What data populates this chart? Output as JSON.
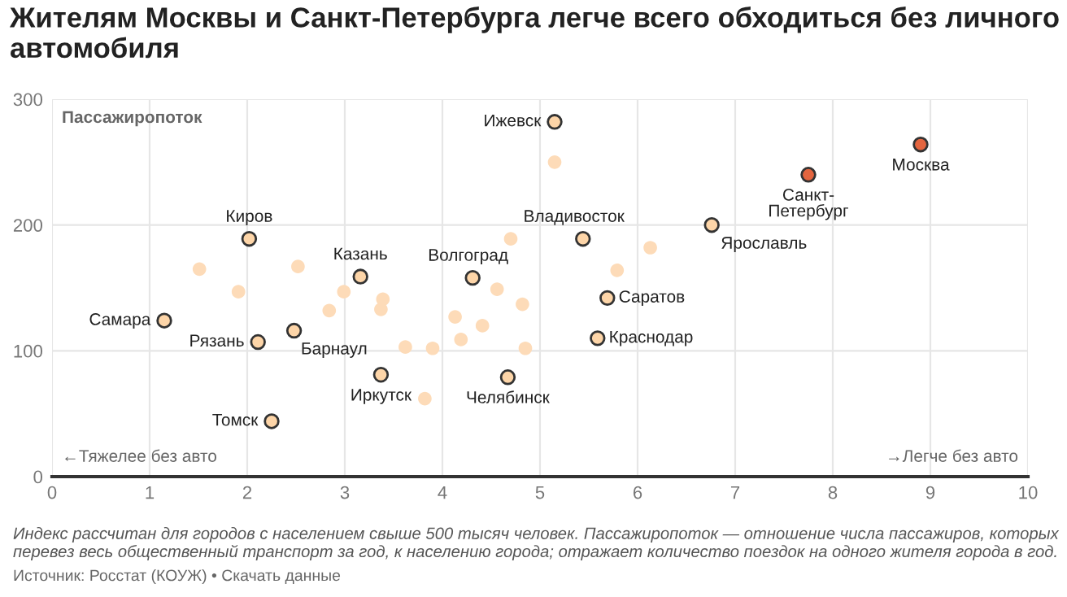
{
  "chart_data": {
    "type": "scatter",
    "title": "Жителям Москвы и Санкт-Петербурга легче всего обходиться без личного автомобиля",
    "ylabel": "Пассажиропоток",
    "xlim": [
      0,
      10
    ],
    "ylim": [
      0,
      300
    ],
    "xticks": [
      0,
      1,
      2,
      3,
      4,
      5,
      6,
      7,
      8,
      9,
      10
    ],
    "yticks": [
      0,
      100,
      200,
      300
    ],
    "grid": true,
    "marker": "circle",
    "series": [
      {
        "color": "#fddbb8",
        "x": [
          1.51,
          1.91,
          2.52,
          2.84,
          2.99,
          3.39,
          3.37,
          3.62,
          3.9,
          3.82,
          4.13,
          4.19,
          4.41,
          4.56,
          4.7,
          4.82,
          4.85,
          5.15,
          6.13,
          5.79
        ],
        "values": [
          165,
          147,
          167,
          132,
          147,
          141,
          133,
          103,
          102,
          62,
          127,
          109,
          120,
          149,
          189,
          137,
          102,
          250,
          182,
          164
        ]
      },
      {
        "color": "#fdd5a8",
        "x": [
          5.15,
          5.44,
          6.76,
          5.69,
          5.59,
          2.02,
          3.16,
          4.31,
          1.15,
          2.11,
          2.48,
          3.37,
          4.67,
          2.25
        ],
        "values": [
          282,
          189,
          200,
          142,
          110,
          189,
          159,
          158,
          124,
          107,
          116,
          81,
          79,
          44
        ]
      },
      {
        "color": "#e4653f",
        "x": [
          8.9,
          7.75
        ],
        "values": [
          264,
          240
        ]
      }
    ],
    "annotations": [
      "←Тяжелее без авто",
      "→Легче без авто",
      "Индекс рассчитан для городов с населением свыше 500 тысяч человек. Пассажиропоток — отношение числа пассажиров, которых перевез весь общественный транспорт за год, к населению города; отражает количество поездок на одного жителя города в год.",
      "Источник: Росстат (КОУЖ) • Скачать данные",
      {
        "text": "Москва",
        "x": 8.9,
        "y": 264
      },
      {
        "text": "Санкт-\nПетербург",
        "x": 7.75,
        "y": 240
      },
      {
        "text": "Ижевск",
        "x": 5.15,
        "y": 282
      },
      {
        "text": "Владивосток",
        "x": 5.44,
        "y": 189
      },
      {
        "text": "Ярославль",
        "x": 6.76,
        "y": 200
      },
      {
        "text": "Саратов",
        "x": 5.69,
        "y": 142
      },
      {
        "text": "Краснодар",
        "x": 5.59,
        "y": 110
      },
      {
        "text": "Киров",
        "x": 2.02,
        "y": 189
      },
      {
        "text": "Казань",
        "x": 3.16,
        "y": 159
      },
      {
        "text": "Волгоград",
        "x": 4.31,
        "y": 158
      },
      {
        "text": "Самара",
        "x": 1.15,
        "y": 124
      },
      {
        "text": "Рязань",
        "x": 2.11,
        "y": 107
      },
      {
        "text": "Барнаул",
        "x": 2.48,
        "y": 116
      },
      {
        "text": "Иркутск",
        "x": 3.37,
        "y": 81
      },
      {
        "text": "Челябинск",
        "x": 4.67,
        "y": 79
      },
      {
        "text": "Томск",
        "x": 2.25,
        "y": 44
      }
    ]
  }
}
